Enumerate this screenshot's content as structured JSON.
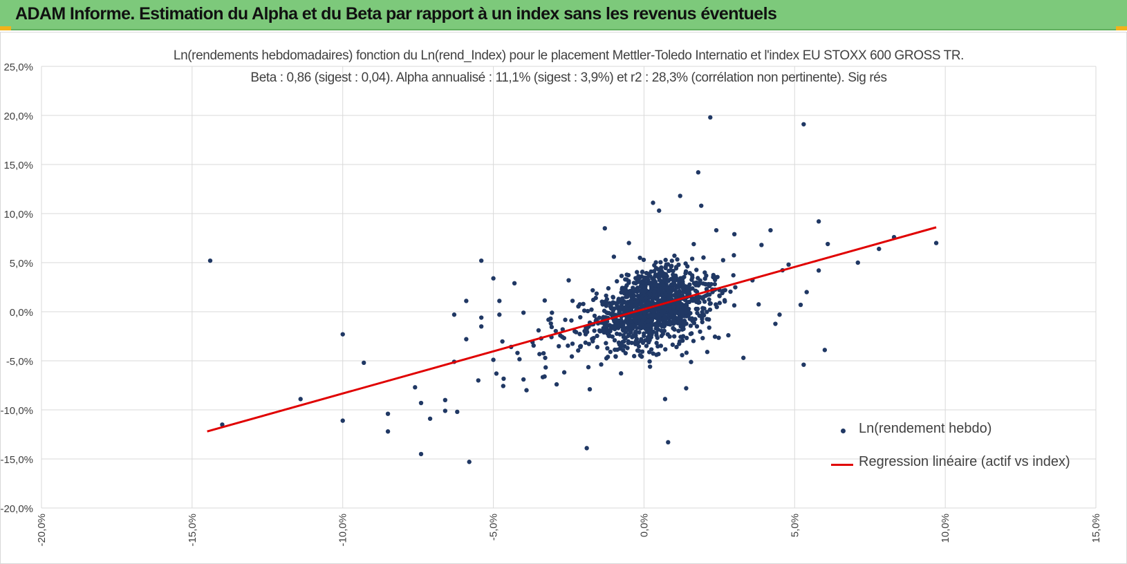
{
  "banner": {
    "title": "ADAM Informe. Estimation du Alpha et du Beta par rapport à un index sans les revenus éventuels",
    "color": "#7dc97b",
    "accent": "#f2b21a"
  },
  "chart_data": {
    "type": "scatter",
    "title_line1": "Ln(rendements hebdomadaires) fonction du Ln(rend_Index) pour le placement Mettler-Toledo Internatio et l'index EU STOXX 600 GROSS TR.",
    "title_line2": "Beta : 0,86 (sigest : 0,04). Alpha annualisé : 11,1% (sigest : 3,9%) et r2 : 28,3% (corrélation non pertinente). Sig rés",
    "xlim": [
      -20,
      15
    ],
    "ylim": [
      -20,
      25
    ],
    "x_ticks": [
      "-20,0%",
      "-15,0%",
      "-10,0%",
      "-5,0%",
      "0,0%",
      "5,0%",
      "10,0%",
      "15,0%"
    ],
    "y_ticks": [
      "25,0%",
      "20,0%",
      "15,0%",
      "10,0%",
      "5,0%",
      "0,0%",
      "-5,0%",
      "-10,0%",
      "-15,0%",
      "-20,0%"
    ],
    "grid": true,
    "point_color": "#203864",
    "line_color": "#e00000",
    "legend": [
      {
        "name": "Ln(rendement hebdo)",
        "kind": "marker"
      },
      {
        "name": "Regression linéaire (actif vs index)",
        "kind": "line"
      }
    ],
    "series": [
      {
        "name": "Ln(rendement hebdo)",
        "points": [
          [
            -14.4,
            5.2
          ],
          [
            -14.0,
            -11.5
          ],
          [
            -11.4,
            -8.9
          ],
          [
            -10.0,
            -2.3
          ],
          [
            -10.0,
            -11.1
          ],
          [
            -9.3,
            -5.2
          ],
          [
            -8.5,
            -10.4
          ],
          [
            -8.5,
            -12.2
          ],
          [
            -7.6,
            -7.7
          ],
          [
            -7.4,
            -14.5
          ],
          [
            -7.4,
            -9.3
          ],
          [
            -7.1,
            -10.9
          ],
          [
            -6.6,
            -9.0
          ],
          [
            -6.6,
            -10.1
          ],
          [
            -6.3,
            -0.3
          ],
          [
            -6.3,
            -5.1
          ],
          [
            -6.2,
            -10.2
          ],
          [
            -5.9,
            1.1
          ],
          [
            -5.9,
            -2.8
          ],
          [
            -5.8,
            -15.3
          ],
          [
            -5.4,
            5.2
          ],
          [
            -5.4,
            -0.6
          ],
          [
            -5.4,
            -1.5
          ],
          [
            -5.5,
            -7.0
          ],
          [
            -5.0,
            3.4
          ],
          [
            -5.0,
            -4.9
          ],
          [
            -4.8,
            1.1
          ],
          [
            -4.8,
            -0.3
          ],
          [
            -4.9,
            -6.3
          ],
          [
            -4.3,
            2.9
          ],
          [
            -4.2,
            -4.2
          ],
          [
            -4.0,
            -0.1
          ],
          [
            -4.0,
            -6.9
          ],
          [
            -3.9,
            -8.0
          ],
          [
            -3.7,
            -3.1
          ],
          [
            -3.5,
            -1.9
          ],
          [
            -3.3,
            -6.6
          ],
          [
            -3.1,
            -0.7
          ],
          [
            -2.9,
            -7.4
          ],
          [
            -2.7,
            -1.8
          ],
          [
            -2.5,
            3.2
          ],
          [
            -2.3,
            -2.0
          ],
          [
            -2.1,
            -3.5
          ],
          [
            -1.9,
            -13.9
          ],
          [
            -1.8,
            -7.9
          ],
          [
            -1.6,
            1.4
          ],
          [
            -1.3,
            8.5
          ],
          [
            -1.2,
            -4.6
          ],
          [
            -1.0,
            5.6
          ],
          [
            -0.8,
            -2.3
          ],
          [
            -0.5,
            7.0
          ],
          [
            -0.3,
            -1.0
          ],
          [
            0.0,
            0.3
          ],
          [
            0.2,
            -5.6
          ],
          [
            0.3,
            11.1
          ],
          [
            0.5,
            10.3
          ],
          [
            0.5,
            3.5
          ],
          [
            0.7,
            -8.9
          ],
          [
            0.8,
            -13.3
          ],
          [
            0.9,
            1.2
          ],
          [
            1.1,
            -0.8
          ],
          [
            1.2,
            11.8
          ],
          [
            1.4,
            -7.8
          ],
          [
            1.6,
            3.7
          ],
          [
            1.8,
            14.2
          ],
          [
            1.9,
            10.8
          ],
          [
            2.1,
            -4.1
          ],
          [
            2.2,
            19.8
          ],
          [
            2.4,
            8.3
          ],
          [
            2.6,
            1.9
          ],
          [
            2.8,
            -2.4
          ],
          [
            3.0,
            7.9
          ],
          [
            3.3,
            -4.7
          ],
          [
            3.6,
            3.2
          ],
          [
            3.9,
            6.8
          ],
          [
            4.2,
            8.3
          ],
          [
            4.5,
            -0.3
          ],
          [
            4.8,
            4.8
          ],
          [
            5.2,
            0.7
          ],
          [
            5.3,
            -5.4
          ],
          [
            5.3,
            19.1
          ],
          [
            5.4,
            2.0
          ],
          [
            5.8,
            4.2
          ],
          [
            5.8,
            9.2
          ],
          [
            6.0,
            -3.9
          ],
          [
            6.1,
            6.9
          ],
          [
            7.1,
            5.0
          ],
          [
            7.8,
            6.4
          ],
          [
            8.3,
            7.6
          ],
          [
            9.7,
            7.0
          ],
          [
            -0.6,
            1.5
          ],
          [
            -0.2,
            -0.8
          ],
          [
            0.1,
            2.1
          ],
          [
            0.4,
            -1.7
          ],
          [
            0.6,
            0.8
          ],
          [
            0.9,
            4.6
          ],
          [
            1.3,
            -2.5
          ],
          [
            -1.5,
            -1.1
          ],
          [
            1.7,
            2.8
          ],
          [
            -0.9,
            3.1
          ]
        ]
      },
      {
        "name": "Regression linéaire (actif vs index)",
        "line": [
          [
            -14.5,
            -12.2
          ],
          [
            9.7,
            8.6
          ]
        ]
      }
    ]
  }
}
